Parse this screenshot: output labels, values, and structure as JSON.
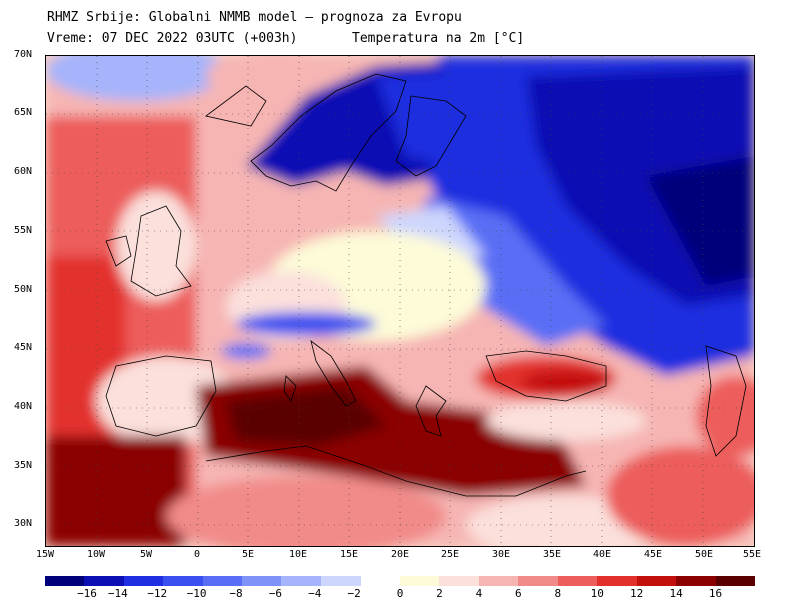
{
  "title_line1": "RHMZ Srbije: Globalni NMMB model — prognoza za Evropu",
  "title_line2": "Vreme: 07 DEC 2022 03UTC (+003h)",
  "title_variable": "Temperatura na 2m [°C]",
  "lat_labels": [
    "70N",
    "65N",
    "60N",
    "55N",
    "50N",
    "45N",
    "40N",
    "35N",
    "30N"
  ],
  "lon_labels": [
    "15W",
    "10W",
    "5W",
    "0",
    "5E",
    "10E",
    "15E",
    "20E",
    "25E",
    "30E",
    "35E",
    "40E",
    "45E",
    "50E",
    "55E"
  ],
  "colorbar": {
    "labels": [
      "−16",
      "−14",
      "−12",
      "−10",
      "−8",
      "−6",
      "−4",
      "−2",
      "0",
      "2",
      "4",
      "6",
      "8",
      "10",
      "12",
      "14",
      "16"
    ],
    "colors": [
      "#00007a",
      "#0c0fb4",
      "#1f2ee0",
      "#3a4ff0",
      "#5a6ef5",
      "#7f92f8",
      "#a6b4fb",
      "#cdd6fd",
      "#fdfbd8",
      "#fbe0dc",
      "#f6b5b3",
      "#f18b89",
      "#ec5d5b",
      "#e3302f",
      "#c40f0f",
      "#8b0000",
      "#5a0000"
    ]
  }
}
